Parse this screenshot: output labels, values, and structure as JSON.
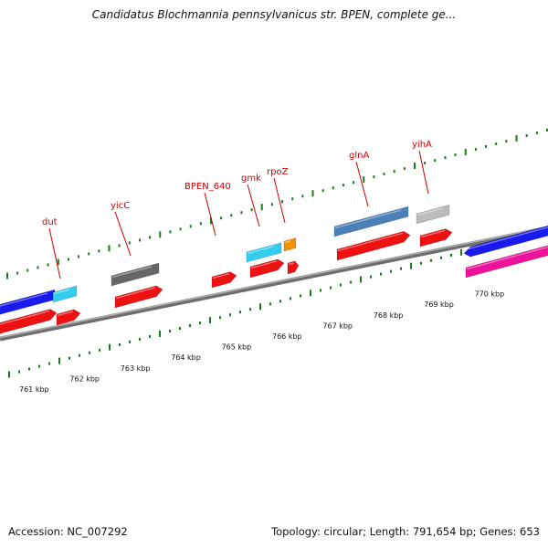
{
  "title": "Candidatus Blochmannia pennsylvanicus str. BPEN, complete ge...",
  "footer": {
    "accession": "Accession: NC_007292",
    "summary": "Topology: circular; Length: 791,654 bp; Genes: 653"
  },
  "colors": {
    "backbone": "#8c8c8c",
    "tick": "#1a7a1a",
    "label": "#cc0000",
    "cds_red": "#ee1111",
    "blue": "#1a1aee",
    "cyan": "#33ccee",
    "steelblue": "#4a80b8",
    "darkgray": "#666666",
    "lightgray": "#bbbbbb",
    "orange": "#f29200",
    "magenta": "#ee1199"
  },
  "kbp_labels": [
    "761 kbp",
    "762 kbp",
    "763 kbp",
    "764 kbp",
    "765 kbp",
    "766 kbp",
    "767 kbp",
    "768 kbp",
    "769 kbp",
    "770 kbp"
  ],
  "gene_labels": [
    {
      "text": "dut",
      "color": "#cc0000"
    },
    {
      "text": "yicC",
      "color": "#cc0000"
    },
    {
      "text": "BPEN_640",
      "color": "#cc0000"
    },
    {
      "text": "gmk",
      "color": "#cc0000"
    },
    {
      "text": "rpoZ",
      "color": "#cc0000"
    },
    {
      "text": "glnA",
      "color": "#cc0000"
    },
    {
      "text": "yihA",
      "color": "#cc0000"
    }
  ],
  "features": [
    {
      "name": "outer-blue-left",
      "color": "#1a1aee",
      "track": "outer",
      "dir": "none"
    },
    {
      "name": "outer-cyan-dut",
      "color": "#33ccee",
      "track": "outer",
      "dir": "none"
    },
    {
      "name": "outer-gray-yicc",
      "color": "#666666",
      "track": "outer",
      "dir": "none"
    },
    {
      "name": "outer-cyan-gmk",
      "color": "#33ccee",
      "track": "outer",
      "dir": "none"
    },
    {
      "name": "outer-orange-rpoz",
      "color": "#f29200",
      "track": "outer",
      "dir": "none"
    },
    {
      "name": "outer-steelblue-glna",
      "color": "#4a80b8",
      "track": "outer",
      "dir": "none"
    },
    {
      "name": "outer-lightgray-yiha",
      "color": "#bbbbbb",
      "track": "outer",
      "dir": "none"
    },
    {
      "name": "inner-red-left",
      "color": "#ee1111",
      "track": "inner",
      "dir": "fwd"
    },
    {
      "name": "inner-red-dut",
      "color": "#ee1111",
      "track": "inner",
      "dir": "fwd"
    },
    {
      "name": "inner-red-yicc",
      "color": "#ee1111",
      "track": "inner",
      "dir": "fwd"
    },
    {
      "name": "inner-red-bpen640",
      "color": "#ee1111",
      "track": "inner",
      "dir": "fwd"
    },
    {
      "name": "inner-red-gmk",
      "color": "#ee1111",
      "track": "inner",
      "dir": "fwd"
    },
    {
      "name": "inner-red-rpoz",
      "color": "#ee1111",
      "track": "inner",
      "dir": "fwd"
    },
    {
      "name": "inner-red-glna",
      "color": "#ee1111",
      "track": "inner",
      "dir": "fwd"
    },
    {
      "name": "inner-red-yiha",
      "color": "#ee1111",
      "track": "inner",
      "dir": "fwd"
    },
    {
      "name": "reverse-blue-right",
      "color": "#1a1aee",
      "track": "reverse",
      "dir": "rev"
    },
    {
      "name": "reverse-magenta-right",
      "color": "#ee1199",
      "track": "reverse",
      "dir": "none"
    }
  ]
}
